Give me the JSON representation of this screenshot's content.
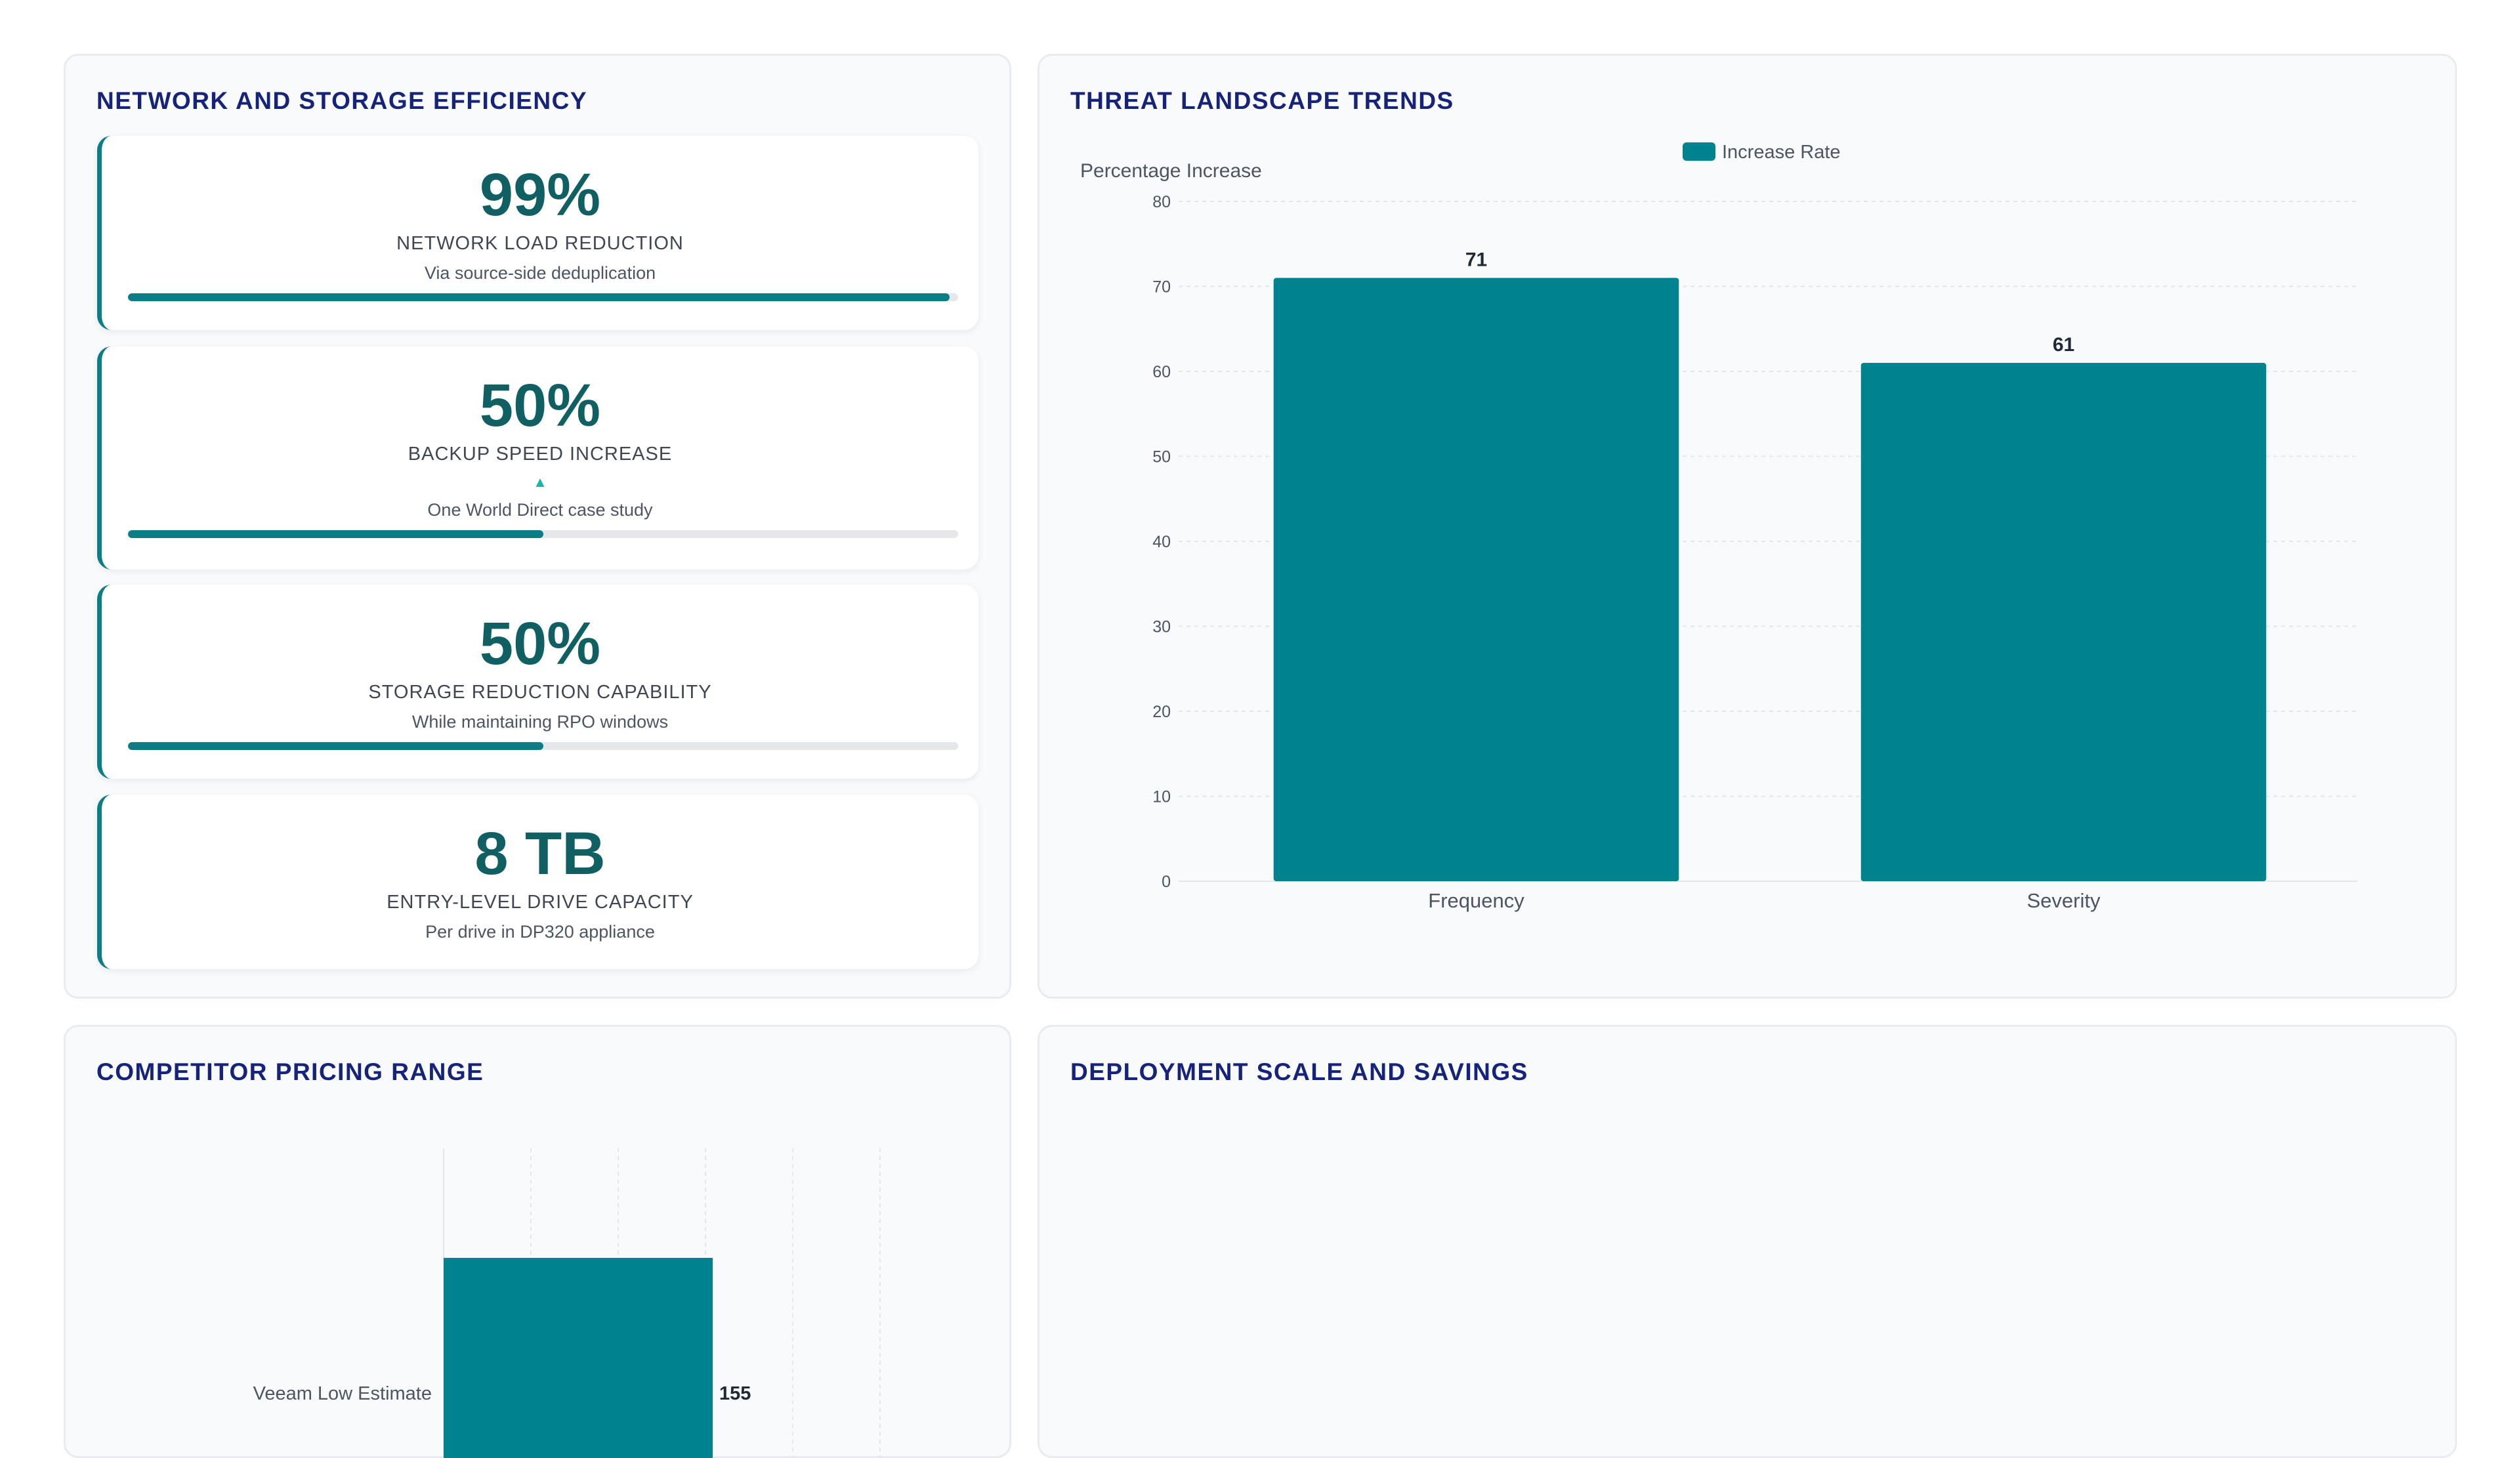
{
  "panels": {
    "efficiency": {
      "title": "NETWORK AND STORAGE EFFICIENCY",
      "metrics": [
        {
          "value": "99%",
          "label": "NETWORK LOAD REDUCTION",
          "sub": "Via source-side deduplication",
          "progress": 0.99
        },
        {
          "value": "50%",
          "label": "BACKUP SPEED INCREASE",
          "arrow": "▲",
          "sub": "One World Direct case study",
          "progress": 0.5
        },
        {
          "value": "50%",
          "label": "STORAGE REDUCTION CAPABILITY",
          "sub": "While maintaining RPO windows",
          "progress": 0.5
        },
        {
          "value": "8 TB",
          "label": "ENTRY-LEVEL DRIVE CAPACITY",
          "sub": "Per drive in DP320 appliance"
        }
      ]
    },
    "threat": {
      "title": "THREAT LANDSCAPE TRENDS"
    },
    "pricing": {
      "title": "COMPETITOR PRICING RANGE"
    },
    "deployment": {
      "title": "DEPLOYMENT SCALE AND SAVINGS"
    }
  },
  "chart_data": [
    {
      "type": "bar",
      "orientation": "vertical",
      "categories": [
        "Frequency",
        "Severity"
      ],
      "series": [
        {
          "name": "Increase Rate",
          "values": [
            71,
            61
          ]
        }
      ],
      "ylabel": "Percentage Increase",
      "ylim": [
        0,
        80
      ],
      "yticks": [
        0,
        10,
        20,
        30,
        40,
        50,
        60,
        70,
        80
      ],
      "legend": "top-center",
      "grid": true,
      "color": "#00838f"
    },
    {
      "type": "bar",
      "orientation": "horizontal",
      "categories": [
        "Veeam Low Estimate"
      ],
      "values": [
        155
      ],
      "grid": true,
      "color": "#00838f"
    }
  ]
}
